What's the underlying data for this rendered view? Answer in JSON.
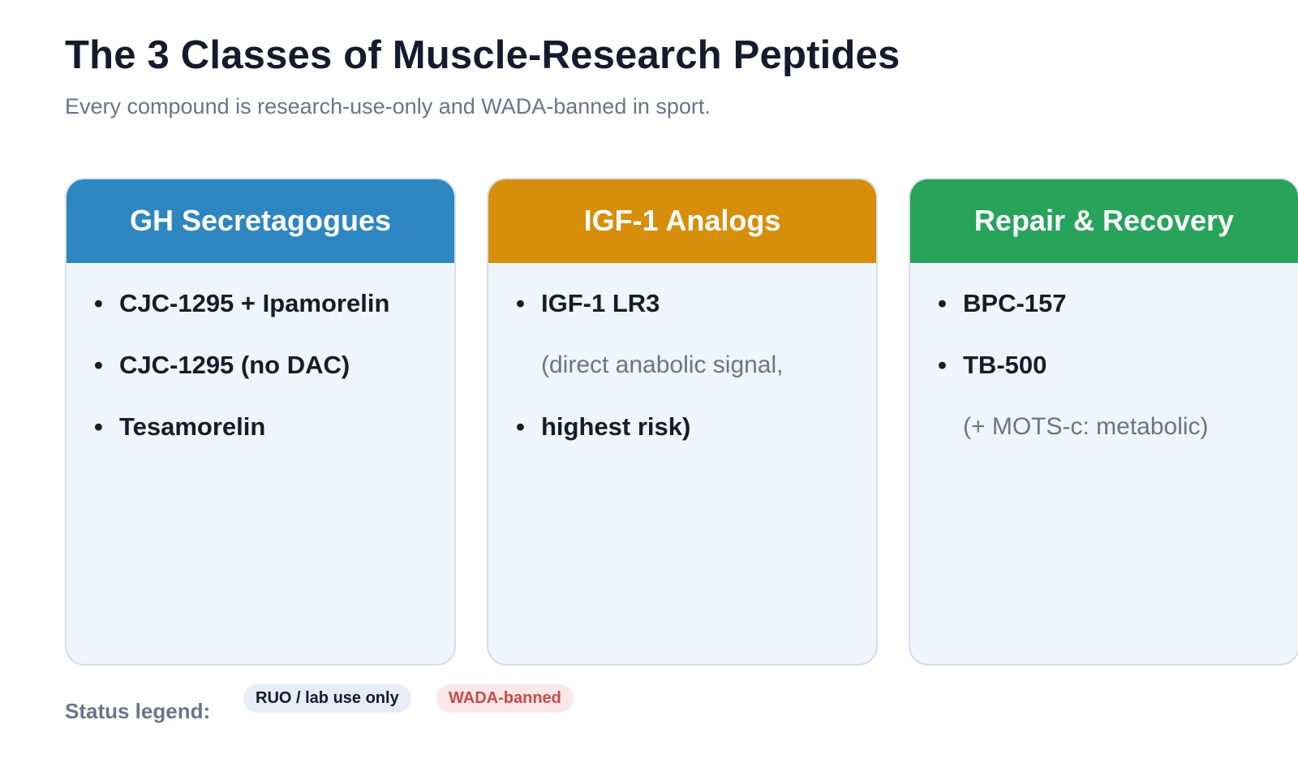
{
  "header": {
    "title": "The 3 Classes of Muscle-Research Peptides",
    "subtitle": "Every compound is research-use-only and WADA-banned in sport."
  },
  "colors": {
    "gh": "#2e86c1",
    "igf": "#d68e0b",
    "repair": "#27a35a",
    "card_bg": "#f0f4fb"
  },
  "cards": [
    {
      "title": "GH Secretagogues",
      "items": [
        {
          "text": "CJC-1295 + Ipamorelin",
          "kind": "bullet"
        },
        {
          "text": "CJC-1295 (no DAC)",
          "kind": "bullet"
        },
        {
          "text": "Tesamorelin",
          "kind": "bullet"
        }
      ]
    },
    {
      "title": "IGF-1 Analogs",
      "items": [
        {
          "text": "IGF-1 LR3",
          "kind": "bullet"
        },
        {
          "text": "(direct anabolic signal,",
          "kind": "note"
        },
        {
          "text": "highest risk)",
          "kind": "bullet"
        }
      ]
    },
    {
      "title": "Repair & Recovery",
      "items": [
        {
          "text": "BPC-157",
          "kind": "bullet"
        },
        {
          "text": "TB-500",
          "kind": "bullet"
        },
        {
          "text": "(+ MOTS-c: metabolic)",
          "kind": "note"
        }
      ]
    }
  ],
  "legend": {
    "label": "Status legend:",
    "ruo": "RUO / lab use only",
    "wada": "WADA-banned"
  }
}
